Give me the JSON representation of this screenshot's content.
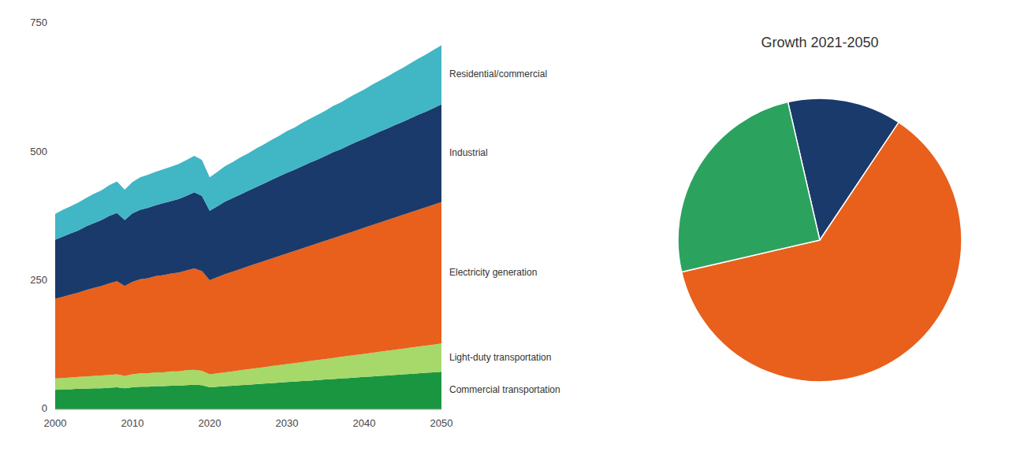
{
  "chart_data": [
    {
      "type": "area",
      "stacked": true,
      "grid": false,
      "x": [
        2000,
        2001,
        2002,
        2003,
        2004,
        2005,
        2006,
        2007,
        2008,
        2009,
        2010,
        2011,
        2012,
        2013,
        2014,
        2015,
        2016,
        2017,
        2018,
        2019,
        2020,
        2021,
        2022,
        2023,
        2024,
        2025,
        2026,
        2027,
        2028,
        2029,
        2030,
        2031,
        2032,
        2033,
        2034,
        2035,
        2036,
        2037,
        2038,
        2039,
        2040,
        2041,
        2042,
        2043,
        2044,
        2045,
        2046,
        2047,
        2048,
        2049,
        2050
      ],
      "xlim": [
        2000,
        2050
      ],
      "xticks": [
        2000,
        2010,
        2020,
        2030,
        2040,
        2050
      ],
      "ylim": [
        0,
        750
      ],
      "yticks": [
        0,
        250,
        500,
        750
      ],
      "series": [
        {
          "name": "Commercial transportation",
          "color": "#1a9641",
          "values": [
            38,
            39,
            39,
            40,
            40,
            41,
            41,
            42,
            43,
            41,
            43,
            44,
            44,
            45,
            45,
            46,
            46,
            47,
            48,
            47,
            43,
            44,
            45,
            46,
            47,
            48,
            49,
            50,
            51,
            52,
            53,
            54,
            55,
            56,
            57,
            58,
            59,
            60,
            61,
            62,
            63,
            64,
            65,
            66,
            67,
            68,
            69,
            70,
            71,
            72,
            73
          ]
        },
        {
          "name": "Light-duty transportation",
          "color": "#a6d96a",
          "values": [
            22,
            22,
            23,
            23,
            24,
            24,
            25,
            25,
            25,
            24,
            25,
            26,
            26,
            27,
            27,
            28,
            28,
            29,
            29,
            28,
            25,
            26,
            27,
            28,
            29,
            30,
            31,
            32,
            33,
            34,
            35,
            36,
            37,
            38,
            39,
            40,
            41,
            42,
            43,
            44,
            45,
            46,
            47,
            48,
            49,
            50,
            51,
            52,
            53,
            54,
            55
          ]
        },
        {
          "name": "Electricity generation",
          "color": "#e8601c",
          "values": [
            155,
            158,
            161,
            164,
            168,
            171,
            174,
            178,
            181,
            175,
            180,
            183,
            185,
            187,
            189,
            190,
            192,
            194,
            197,
            194,
            183,
            187,
            191,
            194,
            197,
            200,
            203,
            206,
            209,
            212,
            215,
            218,
            221,
            224,
            227,
            230,
            233,
            236,
            239,
            242,
            245,
            248,
            251,
            254,
            257,
            260,
            263,
            266,
            269,
            272,
            275
          ]
        },
        {
          "name": "Industrial",
          "color": "#1a3a6b",
          "values": [
            115,
            117,
            119,
            121,
            124,
            126,
            128,
            131,
            133,
            128,
            133,
            135,
            137,
            138,
            140,
            141,
            143,
            145,
            148,
            146,
            135,
            138,
            141,
            143,
            145,
            147,
            149,
            151,
            153,
            155,
            157,
            158,
            160,
            162,
            163,
            165,
            167,
            168,
            170,
            172,
            173,
            175,
            177,
            178,
            180,
            181,
            183,
            185,
            186,
            188,
            190
          ]
        },
        {
          "name": "Residential/commercial",
          "color": "#41b6c4",
          "values": [
            50,
            52,
            53,
            54,
            55,
            57,
            58,
            60,
            61,
            59,
            61,
            63,
            64,
            65,
            66,
            67,
            68,
            70,
            71,
            70,
            65,
            67,
            69,
            70,
            72,
            73,
            75,
            76,
            78,
            79,
            81,
            82,
            84,
            85,
            87,
            88,
            90,
            91,
            93,
            94,
            96,
            98,
            99,
            101,
            103,
            105,
            107,
            109,
            111,
            113,
            115
          ]
        }
      ]
    },
    {
      "type": "pie",
      "title": "Growth 2021-2050",
      "values": [
        13,
        62,
        25
      ],
      "colors": [
        "#1a3a6b",
        "#e8601c",
        "#2ca25f"
      ]
    }
  ]
}
